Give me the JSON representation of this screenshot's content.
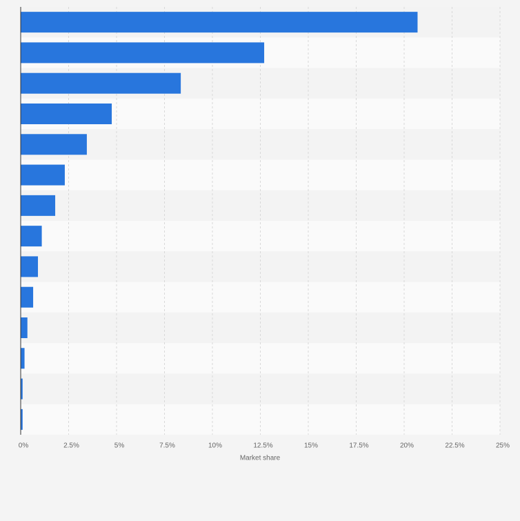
{
  "chart_data": {
    "type": "bar",
    "orientation": "horizontal",
    "categories": [
      null,
      null,
      null,
      null,
      null,
      null,
      null,
      null,
      null,
      null,
      null,
      null,
      null,
      null
    ],
    "values": [
      20.7,
      12.7,
      8.35,
      4.75,
      3.45,
      2.3,
      1.8,
      1.1,
      0.9,
      0.65,
      0.35,
      0.2,
      0.1,
      0.1
    ],
    "color": "#2876dd",
    "x_label": "Market share",
    "xlim": [
      0,
      25
    ],
    "xticks": [
      {
        "value": 0,
        "label": "0%"
      },
      {
        "value": 2.5,
        "label": "2.5%"
      },
      {
        "value": 5,
        "label": "5%"
      },
      {
        "value": 7.5,
        "label": "7.5%"
      },
      {
        "value": 10,
        "label": "10%"
      },
      {
        "value": 12.5,
        "label": "12.5%"
      },
      {
        "value": 15,
        "label": "15%"
      },
      {
        "value": 17.5,
        "label": "17.5%"
      },
      {
        "value": 20,
        "label": "20%"
      },
      {
        "value": 22.5,
        "label": "22.5%"
      },
      {
        "value": 25,
        "label": "25%"
      }
    ],
    "grid": true
  }
}
